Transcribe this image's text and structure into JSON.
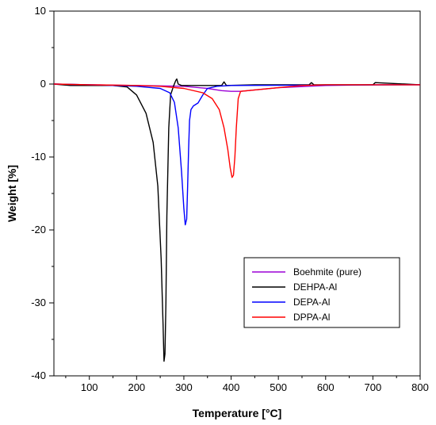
{
  "chart_data": {
    "type": "line",
    "xlabel": "Temperature [°C]",
    "ylabel": "Weight [%]",
    "xlim": [
      25,
      800
    ],
    "ylim": [
      -40,
      10
    ],
    "xticks": [
      100,
      200,
      300,
      400,
      500,
      600,
      700,
      800
    ],
    "yticks": [
      10,
      0,
      -10,
      -20,
      -30,
      -40
    ],
    "grid": false,
    "legend_position": "lower-right",
    "series": [
      {
        "name": "Boehmite (pure)",
        "color": "#9b00d6",
        "x": [
          25,
          100,
          200,
          300,
          350,
          380,
          400,
          420,
          450,
          500,
          600,
          700,
          800
        ],
        "y": [
          0,
          -0.1,
          -0.2,
          -0.3,
          -0.6,
          -0.9,
          -1.0,
          -1.0,
          -0.8,
          -0.5,
          -0.2,
          -0.1,
          -0.1
        ]
      },
      {
        "name": "DEHPA-Al",
        "color": "#000000",
        "x": [
          25,
          60,
          100,
          150,
          180,
          200,
          220,
          235,
          245,
          252,
          256,
          258,
          260,
          262,
          264,
          268,
          272,
          278,
          283,
          285,
          288,
          295,
          350,
          380,
          385,
          390,
          450,
          565,
          570,
          575,
          700,
          705,
          800
        ],
        "y": [
          0,
          -0.2,
          -0.2,
          -0.2,
          -0.4,
          -1.5,
          -4,
          -8,
          -14,
          -24,
          -33,
          -38,
          -37,
          -30,
          -18,
          -6,
          -1.5,
          -0.3,
          0.5,
          0.7,
          0,
          -0.2,
          -0.2,
          -0.2,
          0.3,
          -0.2,
          -0.1,
          -0.1,
          0.2,
          -0.1,
          -0.1,
          0.2,
          -0.1
        ]
      },
      {
        "name": "DEPA-Al",
        "color": "#0000ff",
        "x": [
          25,
          100,
          200,
          250,
          270,
          280,
          288,
          295,
          300,
          303,
          306,
          308,
          310,
          312,
          315,
          320,
          330,
          340,
          350,
          370,
          400,
          800
        ],
        "y": [
          0,
          -0.1,
          -0.3,
          -0.6,
          -1.2,
          -2.5,
          -6,
          -12,
          -17,
          -19.3,
          -18.5,
          -14,
          -9,
          -5,
          -3.5,
          -3,
          -2.6,
          -1.5,
          -0.6,
          -0.3,
          -0.2,
          -0.1
        ]
      },
      {
        "name": "DPPA-Al",
        "color": "#ff0000",
        "x": [
          25,
          100,
          200,
          250,
          300,
          340,
          360,
          375,
          385,
          393,
          398,
          402,
          405,
          408,
          411,
          415,
          420,
          450,
          500,
          550,
          600,
          800
        ],
        "y": [
          0,
          -0.1,
          -0.2,
          -0.3,
          -0.6,
          -1.2,
          -2,
          -3.5,
          -6,
          -9,
          -11.5,
          -12.8,
          -12.5,
          -10,
          -6,
          -2,
          -1,
          -0.8,
          -0.5,
          -0.2,
          -0.1,
          -0.1
        ]
      }
    ]
  }
}
